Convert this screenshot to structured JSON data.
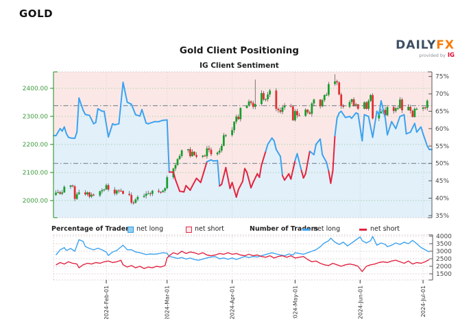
{
  "header": {
    "symbol": "GOLD"
  },
  "logo": {
    "brand_primary": "DAILY",
    "brand_accent": "FX",
    "provided_by": "provided by",
    "provider": "IG"
  },
  "chart": {
    "title": "Gold Client Positioning",
    "subtitle": "IG Client Sentiment"
  },
  "legend": {
    "pct_group": "Percentage of Traders",
    "count_group": "Number of Traders",
    "pct_net_long": "net long",
    "pct_net_short": "net short",
    "count_net_long": "net long",
    "count_net_short": "net short"
  },
  "colors": {
    "long_blue": "#3aa2f0",
    "short_red": "#e02440",
    "candle_up": "#15a02c",
    "candle_down": "#e03030",
    "fill_above_line": "#fbe8e6",
    "fill_below_line": "#e2f0fa",
    "price_axis_green": "#3f9b3f",
    "grid_green": "#a8d2a8",
    "axis_gray": "#555555",
    "grid_gray": "#d6d6d6",
    "sub_grid": "#d8caca",
    "ref_line": "#76858f",
    "wick": "#333333"
  },
  "chart_data": {
    "type": "candlestick+line",
    "title": "Gold Client Positioning",
    "subtitle": "IG Client Sentiment",
    "price_axis": {
      "ticks": [
        2000,
        2100,
        2200,
        2300,
        2400
      ],
      "labels": [
        "2000.00",
        "2100.00",
        "2200.00",
        "2300.00",
        "2400.00"
      ]
    },
    "pct_axis": {
      "ticks": [
        35,
        40,
        45,
        50,
        55,
        60,
        65,
        70,
        75
      ],
      "labels": [
        "35%",
        "40%",
        "45%",
        "50%",
        "55%",
        "60%",
        "65%",
        "70%",
        "75%"
      ]
    },
    "count_axis": {
      "ticks": [
        1500,
        2000,
        2500,
        3000,
        3500,
        4000
      ],
      "labels": [
        "1500",
        "2000",
        "2500",
        "3000",
        "3500",
        "4000"
      ]
    },
    "months": [
      {
        "label": "2024-Feb-01",
        "day": 24
      },
      {
        "label": "2024-Mar-01",
        "day": 53
      },
      {
        "label": "2024-Apr-01",
        "day": 84
      },
      {
        "label": "2024-May-01",
        "day": 114
      },
      {
        "label": "2024-Jun-01",
        "day": 145
      },
      {
        "label": "2024-Jul-01",
        "day": 175
      }
    ],
    "reference_lines": {
      "price": 2338,
      "pct": 50
    },
    "candles": {
      "first_open": 2020,
      "closes": [
        2028,
        2030,
        2024,
        2029,
        2049,
        2054,
        2051,
        2006,
        2023,
        2029,
        2022,
        2029,
        2014,
        2021,
        2018,
        2033,
        2037,
        2040,
        2055,
        2039,
        2025,
        2036,
        2035,
        2034,
        2024,
        2020,
        1993,
        1992,
        2004,
        2013,
        2017,
        2024,
        2026,
        2024,
        2035,
        2031,
        2030,
        2035,
        2044,
        2083,
        2114,
        2127,
        2148,
        2159,
        2179,
        2183,
        2158,
        2174,
        2162,
        2156,
        2160,
        2158,
        2186,
        2181,
        2165,
        2171,
        2178,
        2195,
        2233,
        2233,
        2251,
        2281,
        2299,
        2290,
        2330,
        2339,
        2353,
        2348,
        2334,
        2344,
        2383,
        2360,
        2361,
        2378,
        2392,
        2327,
        2322,
        2316,
        2332,
        2338,
        2335,
        2286,
        2319,
        2304,
        2302,
        2324,
        2314,
        2309,
        2346,
        2360,
        2336,
        2358,
        2376,
        2377,
        2415,
        2425,
        2421,
        2378,
        2337,
        2334,
        2351,
        2361,
        2338,
        2343,
        2327,
        2350,
        2327,
        2355,
        2376,
        2293,
        2311,
        2317,
        2323,
        2304,
        2333,
        2319,
        2329,
        2329,
        2360,
        2322,
        2334,
        2320,
        2298,
        2327,
        2327,
        2332,
        2330,
        2356
      ],
      "wick_overrides": {
        "69": 2431,
        "95": 2450
      }
    },
    "sentiment_pct": [
      [
        0,
        58
      ],
      [
        2,
        60
      ],
      [
        3,
        59.3
      ],
      [
        4,
        60.5
      ],
      [
        5,
        58.5
      ],
      [
        6,
        57.5
      ],
      [
        7,
        57.3
      ],
      [
        9,
        57.2
      ],
      [
        10,
        59
      ],
      [
        11,
        68.8
      ],
      [
        13,
        65.3
      ],
      [
        14,
        64.1
      ],
      [
        16,
        63.8
      ],
      [
        18,
        61.4
      ],
      [
        19,
        61.8
      ],
      [
        20,
        65.7
      ],
      [
        22,
        65
      ],
      [
        23,
        65
      ],
      [
        25,
        57.6
      ],
      [
        27,
        61.4
      ],
      [
        28,
        61.1
      ],
      [
        30,
        61.4
      ],
      [
        32,
        73.3
      ],
      [
        34,
        67.6
      ],
      [
        36,
        67
      ],
      [
        38,
        64
      ],
      [
        40,
        63.6
      ],
      [
        41,
        65.5
      ],
      [
        43,
        61.6
      ],
      [
        44,
        61.4
      ],
      [
        47,
        62
      ],
      [
        49,
        62
      ],
      [
        51,
        62.4
      ],
      [
        53,
        62.5
      ],
      [
        54,
        47.5
      ],
      [
        56,
        47.5
      ],
      [
        57,
        45.3
      ],
      [
        59,
        42
      ],
      [
        61,
        41.8
      ],
      [
        62,
        43.6
      ],
      [
        64,
        42.3
      ],
      [
        65,
        43.5
      ],
      [
        67,
        45.7
      ],
      [
        69,
        44.5
      ],
      [
        71,
        48.5
      ],
      [
        72,
        50.5
      ],
      [
        74,
        51
      ],
      [
        75,
        50.7
      ],
      [
        77,
        50.8
      ],
      [
        78,
        43.5
      ],
      [
        79,
        44
      ],
      [
        81,
        48.8
      ],
      [
        83,
        42.8
      ],
      [
        84,
        44.5
      ],
      [
        86,
        40.3
      ],
      [
        87,
        42.5
      ],
      [
        89,
        44.8
      ],
      [
        90,
        48.5
      ],
      [
        91,
        47.5
      ],
      [
        93,
        43
      ],
      [
        94,
        44.5
      ],
      [
        96,
        47
      ],
      [
        97,
        46
      ],
      [
        98,
        49.5
      ],
      [
        100,
        53.5
      ],
      [
        101,
        55.5
      ],
      [
        103,
        57.3
      ],
      [
        104,
        56.5
      ],
      [
        105,
        54
      ],
      [
        107,
        52
      ],
      [
        108,
        46.5
      ],
      [
        109,
        45.2
      ],
      [
        111,
        47
      ],
      [
        112,
        45.5
      ],
      [
        114,
        50.8
      ],
      [
        115,
        52.8
      ],
      [
        117,
        48
      ],
      [
        118,
        45.8
      ],
      [
        119,
        47
      ],
      [
        121,
        53.5
      ],
      [
        123,
        52.5
      ],
      [
        124,
        55.5
      ],
      [
        126,
        57
      ],
      [
        127,
        52.5
      ],
      [
        129,
        50.3
      ],
      [
        130,
        47.8
      ],
      [
        131,
        44.3
      ],
      [
        132,
        48
      ],
      [
        133,
        58
      ],
      [
        134,
        63
      ],
      [
        135,
        64.5
      ],
      [
        136,
        65
      ],
      [
        138,
        63.2
      ],
      [
        140,
        63.5
      ],
      [
        141,
        63
      ],
      [
        143,
        64.5
      ],
      [
        144,
        64.3
      ],
      [
        146,
        56.5
      ],
      [
        147,
        64
      ],
      [
        149,
        63.5
      ],
      [
        151,
        57.5
      ],
      [
        153,
        65
      ],
      [
        154,
        64
      ],
      [
        155,
        68
      ],
      [
        157,
        63
      ],
      [
        158,
        58.2
      ],
      [
        160,
        62
      ],
      [
        162,
        60
      ],
      [
        164,
        63.5
      ],
      [
        166,
        64
      ],
      [
        167,
        58.5
      ],
      [
        169,
        59
      ],
      [
        171,
        61.5
      ],
      [
        172,
        59
      ],
      [
        174,
        60.5
      ],
      [
        175,
        58.5
      ],
      [
        177,
        55
      ],
      [
        178,
        54
      ]
    ],
    "counts_long": [
      [
        0,
        2750
      ],
      [
        2,
        3090
      ],
      [
        4,
        3240
      ],
      [
        5,
        3050
      ],
      [
        7,
        3180
      ],
      [
        9,
        3000
      ],
      [
        11,
        3770
      ],
      [
        13,
        3650
      ],
      [
        14,
        3320
      ],
      [
        16,
        3180
      ],
      [
        18,
        3090
      ],
      [
        20,
        3200
      ],
      [
        22,
        3090
      ],
      [
        24,
        2950
      ],
      [
        25,
        2720
      ],
      [
        27,
        2950
      ],
      [
        29,
        3050
      ],
      [
        32,
        3400
      ],
      [
        34,
        3100
      ],
      [
        36,
        3100
      ],
      [
        38,
        2950
      ],
      [
        40,
        2900
      ],
      [
        43,
        2780
      ],
      [
        45,
        2820
      ],
      [
        47,
        2800
      ],
      [
        49,
        2840
      ],
      [
        51,
        2900
      ],
      [
        53,
        2870
      ],
      [
        54,
        2650
      ],
      [
        56,
        2600
      ],
      [
        58,
        2520
      ],
      [
        60,
        2580
      ],
      [
        62,
        2480
      ],
      [
        64,
        2550
      ],
      [
        66,
        2450
      ],
      [
        68,
        2400
      ],
      [
        70,
        2480
      ],
      [
        72,
        2560
      ],
      [
        74,
        2620
      ],
      [
        76,
        2640
      ],
      [
        78,
        2500
      ],
      [
        80,
        2550
      ],
      [
        82,
        2470
      ],
      [
        84,
        2550
      ],
      [
        86,
        2460
      ],
      [
        88,
        2550
      ],
      [
        90,
        2650
      ],
      [
        92,
        2580
      ],
      [
        94,
        2650
      ],
      [
        96,
        2620
      ],
      [
        98,
        2700
      ],
      [
        100,
        2780
      ],
      [
        103,
        2900
      ],
      [
        105,
        2820
      ],
      [
        107,
        2750
      ],
      [
        109,
        2700
      ],
      [
        111,
        2820
      ],
      [
        113,
        2750
      ],
      [
        114,
        2900
      ],
      [
        116,
        2850
      ],
      [
        118,
        2800
      ],
      [
        120,
        2900
      ],
      [
        122,
        3000
      ],
      [
        124,
        3100
      ],
      [
        126,
        3300
      ],
      [
        128,
        3550
      ],
      [
        130,
        3700
      ],
      [
        131,
        3870
      ],
      [
        133,
        3600
      ],
      [
        135,
        3450
      ],
      [
        137,
        3600
      ],
      [
        139,
        3350
      ],
      [
        141,
        3550
      ],
      [
        143,
        3750
      ],
      [
        145,
        3950
      ],
      [
        146,
        3700
      ],
      [
        148,
        3550
      ],
      [
        150,
        3700
      ],
      [
        151,
        3980
      ],
      [
        153,
        3400
      ],
      [
        155,
        3550
      ],
      [
        157,
        3450
      ],
      [
        158,
        3300
      ],
      [
        160,
        3400
      ],
      [
        162,
        3550
      ],
      [
        164,
        3450
      ],
      [
        166,
        3600
      ],
      [
        168,
        3500
      ],
      [
        170,
        3720
      ],
      [
        172,
        3500
      ],
      [
        174,
        3250
      ],
      [
        176,
        3100
      ],
      [
        178,
        2950
      ]
    ],
    "counts_short": [
      [
        0,
        2090
      ],
      [
        2,
        2250
      ],
      [
        4,
        2150
      ],
      [
        6,
        2300
      ],
      [
        8,
        2200
      ],
      [
        10,
        2150
      ],
      [
        11,
        1900
      ],
      [
        13,
        2100
      ],
      [
        15,
        2200
      ],
      [
        17,
        2150
      ],
      [
        19,
        2250
      ],
      [
        21,
        2200
      ],
      [
        23,
        2300
      ],
      [
        25,
        2350
      ],
      [
        27,
        2250
      ],
      [
        29,
        2300
      ],
      [
        31,
        2400
      ],
      [
        32,
        2100
      ],
      [
        34,
        1950
      ],
      [
        36,
        2050
      ],
      [
        38,
        1900
      ],
      [
        40,
        2000
      ],
      [
        42,
        1850
      ],
      [
        44,
        1950
      ],
      [
        46,
        1900
      ],
      [
        48,
        2000
      ],
      [
        50,
        1950
      ],
      [
        52,
        2050
      ],
      [
        53,
        2550
      ],
      [
        54,
        2700
      ],
      [
        56,
        2900
      ],
      [
        58,
        2800
      ],
      [
        60,
        3000
      ],
      [
        62,
        2850
      ],
      [
        64,
        2950
      ],
      [
        66,
        2900
      ],
      [
        68,
        2800
      ],
      [
        70,
        2900
      ],
      [
        72,
        2750
      ],
      [
        74,
        2700
      ],
      [
        76,
        2750
      ],
      [
        78,
        2850
      ],
      [
        80,
        2800
      ],
      [
        82,
        2900
      ],
      [
        84,
        2800
      ],
      [
        86,
        2850
      ],
      [
        88,
        2750
      ],
      [
        90,
        2700
      ],
      [
        92,
        2800
      ],
      [
        94,
        2700
      ],
      [
        96,
        2750
      ],
      [
        98,
        2650
      ],
      [
        100,
        2600
      ],
      [
        102,
        2700
      ],
      [
        104,
        2550
      ],
      [
        106,
        2650
      ],
      [
        108,
        2700
      ],
      [
        110,
        2600
      ],
      [
        112,
        2700
      ],
      [
        114,
        2550
      ],
      [
        116,
        2600
      ],
      [
        118,
        2650
      ],
      [
        120,
        2450
      ],
      [
        122,
        2300
      ],
      [
        124,
        2350
      ],
      [
        126,
        2200
      ],
      [
        128,
        2100
      ],
      [
        130,
        2050
      ],
      [
        132,
        2200
      ],
      [
        134,
        2100
      ],
      [
        136,
        2000
      ],
      [
        138,
        2100
      ],
      [
        140,
        2150
      ],
      [
        142,
        2100
      ],
      [
        144,
        2000
      ],
      [
        146,
        1650
      ],
      [
        148,
        2000
      ],
      [
        150,
        2100
      ],
      [
        152,
        2150
      ],
      [
        154,
        2250
      ],
      [
        156,
        2300
      ],
      [
        158,
        2250
      ],
      [
        160,
        2350
      ],
      [
        162,
        2400
      ],
      [
        164,
        2300
      ],
      [
        166,
        2200
      ],
      [
        168,
        2350
      ],
      [
        170,
        2150
      ],
      [
        172,
        2250
      ],
      [
        174,
        2200
      ],
      [
        176,
        2300
      ],
      [
        178,
        2450
      ]
    ]
  }
}
